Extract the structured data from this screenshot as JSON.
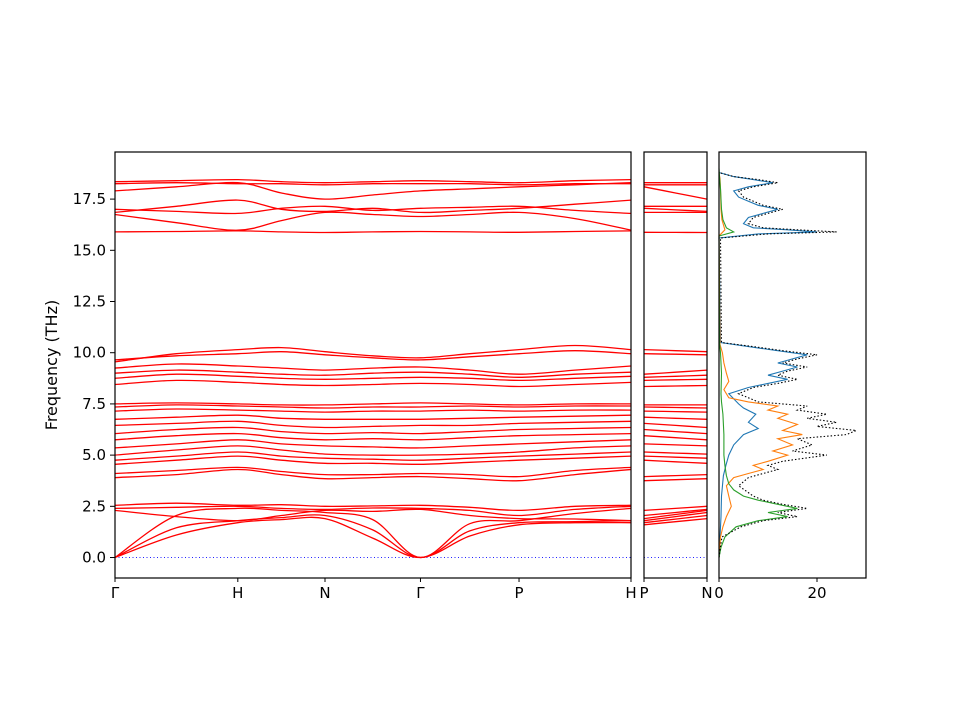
{
  "figure": {
    "ylabel": "Frequency (THz)",
    "background": "#ffffff",
    "frame_color": "#000000",
    "zero_line_color": "#0000ff",
    "band_color": "#ff0000"
  },
  "chart_data": [
    {
      "type": "line",
      "name": "band-structure-main",
      "title": "",
      "xlabel": "",
      "ylabel": "Frequency (THz)",
      "xticklabels": [
        "Γ",
        "H",
        "N",
        "Γ",
        "P",
        "H"
      ],
      "xtick_positions": [
        0,
        0.238,
        0.407,
        0.592,
        0.783,
        1.0
      ],
      "yticks": [
        0,
        2.5,
        5,
        7.5,
        10,
        12.5,
        15,
        17.5
      ],
      "ytick_labels": [
        "0.0",
        "2.5",
        "5.0",
        "7.5",
        "10.0",
        "12.5",
        "15.0",
        "17.5"
      ],
      "ylim": [
        -1.0,
        19.8
      ],
      "zero_line": 0,
      "band_color": "#ff0000",
      "sample_positions": [
        0,
        0.119,
        0.238,
        0.3225,
        0.407,
        0.4995,
        0.592,
        0.6875,
        0.783,
        0.8915,
        1.0
      ],
      "bands": [
        [
          0,
          1.1,
          1.7,
          1.85,
          1.9,
          0.95,
          0,
          1.05,
          1.6,
          1.7,
          1.7
        ],
        [
          0,
          1.45,
          1.8,
          1.95,
          2.05,
          1.35,
          0,
          1.3,
          1.7,
          1.75,
          1.8
        ],
        [
          0,
          2.05,
          2.4,
          2.3,
          2.2,
          1.85,
          0,
          1.65,
          1.8,
          2.15,
          2.4
        ],
        [
          2.3,
          2.0,
          1.8,
          2.05,
          2.3,
          2.25,
          2.35,
          2.05,
          1.9,
          1.88,
          1.8
        ],
        [
          2.4,
          2.45,
          2.5,
          2.4,
          2.35,
          2.42,
          2.4,
          2.3,
          2.05,
          2.35,
          2.5
        ],
        [
          2.55,
          2.65,
          2.55,
          2.58,
          2.5,
          2.52,
          2.55,
          2.45,
          2.3,
          2.5,
          2.55
        ],
        [
          3.9,
          4.05,
          4.3,
          4.05,
          3.85,
          3.9,
          3.95,
          3.85,
          3.75,
          4.05,
          4.3
        ],
        [
          4.1,
          4.25,
          4.4,
          4.2,
          4.05,
          4.05,
          4.1,
          4.05,
          3.95,
          4.25,
          4.4
        ],
        [
          4.55,
          4.75,
          4.95,
          4.75,
          4.6,
          4.6,
          4.55,
          4.65,
          4.75,
          4.85,
          4.95
        ],
        [
          4.75,
          4.95,
          5.15,
          4.95,
          4.85,
          4.8,
          4.75,
          4.85,
          4.95,
          5.05,
          5.15
        ],
        [
          5.0,
          5.25,
          5.45,
          5.25,
          5.05,
          5.0,
          5.0,
          5.05,
          5.15,
          5.35,
          5.45
        ],
        [
          5.35,
          5.55,
          5.75,
          5.55,
          5.45,
          5.4,
          5.35,
          5.45,
          5.55,
          5.65,
          5.75
        ],
        [
          5.75,
          5.95,
          6.05,
          5.85,
          5.75,
          5.8,
          5.75,
          5.85,
          5.95,
          6.0,
          6.05
        ],
        [
          6.05,
          6.25,
          6.35,
          6.15,
          6.05,
          6.1,
          6.05,
          6.15,
          6.25,
          6.3,
          6.35
        ],
        [
          6.45,
          6.55,
          6.65,
          6.45,
          6.35,
          6.4,
          6.45,
          6.45,
          6.55,
          6.6,
          6.65
        ],
        [
          6.75,
          6.85,
          6.95,
          6.8,
          6.75,
          6.75,
          6.75,
          6.8,
          6.85,
          6.9,
          6.95
        ],
        [
          7.15,
          7.25,
          7.2,
          7.15,
          7.1,
          7.15,
          7.15,
          7.2,
          7.15,
          7.2,
          7.2
        ],
        [
          7.35,
          7.45,
          7.4,
          7.35,
          7.3,
          7.35,
          7.35,
          7.4,
          7.35,
          7.4,
          7.4
        ],
        [
          7.5,
          7.55,
          7.5,
          7.45,
          7.45,
          7.5,
          7.55,
          7.5,
          7.45,
          7.5,
          7.5
        ],
        [
          8.45,
          8.65,
          8.55,
          8.45,
          8.4,
          8.45,
          8.5,
          8.45,
          8.35,
          8.45,
          8.55
        ],
        [
          8.75,
          8.95,
          8.85,
          8.75,
          8.7,
          8.75,
          8.8,
          8.75,
          8.65,
          8.75,
          8.85
        ],
        [
          9.0,
          9.15,
          9.05,
          8.95,
          8.9,
          9.0,
          9.05,
          8.95,
          8.8,
          8.95,
          9.05
        ],
        [
          9.25,
          9.45,
          9.35,
          9.25,
          9.15,
          9.25,
          9.3,
          9.15,
          8.95,
          9.15,
          9.35
        ],
        [
          9.55,
          9.95,
          10.15,
          10.25,
          10.05,
          9.85,
          9.75,
          9.95,
          10.15,
          10.35,
          10.15
        ],
        [
          9.65,
          9.85,
          9.95,
          10.05,
          9.9,
          9.75,
          9.65,
          9.8,
          9.95,
          10.1,
          9.95
        ],
        [
          15.9,
          15.92,
          15.95,
          15.9,
          15.87,
          15.9,
          15.92,
          15.9,
          15.88,
          15.92,
          15.95
        ],
        [
          16.75,
          16.35,
          15.98,
          16.45,
          16.85,
          16.75,
          16.65,
          16.75,
          16.85,
          16.55,
          15.98
        ],
        [
          16.85,
          17.15,
          17.45,
          17.0,
          16.9,
          17.05,
          16.85,
          16.95,
          17.05,
          17.25,
          17.45
        ],
        [
          17.0,
          16.9,
          16.8,
          17.05,
          17.15,
          16.95,
          17.05,
          17.1,
          17.15,
          16.95,
          16.8
        ],
        [
          17.9,
          18.1,
          18.3,
          17.8,
          17.5,
          17.7,
          17.9,
          18.0,
          18.1,
          18.2,
          18.3
        ],
        [
          18.25,
          18.3,
          18.25,
          18.25,
          18.2,
          18.25,
          18.25,
          18.25,
          18.2,
          18.25,
          18.25
        ],
        [
          18.35,
          18.4,
          18.45,
          18.35,
          18.3,
          18.35,
          18.4,
          18.35,
          18.3,
          18.4,
          18.45
        ]
      ]
    },
    {
      "type": "line",
      "name": "band-structure-pn",
      "title": "",
      "xticklabels": [
        "P",
        "N"
      ],
      "path_sample_indices": {
        "P": 8,
        "N": 4
      },
      "shares_bands_with": "band-structure-main",
      "ylim": [
        -1.0,
        19.8
      ],
      "zero_line": 0,
      "band_color": "#ff0000"
    },
    {
      "type": "line",
      "name": "density-of-states",
      "title": "",
      "xticks": [
        0,
        20
      ],
      "xtick_labels": [
        "0",
        "20"
      ],
      "xlim": [
        0,
        30
      ],
      "ylim": [
        -1.0,
        19.8
      ],
      "series": [
        {
          "name": "partial-dos-blue",
          "color": "#1f77b4",
          "line_style": "solid",
          "points": [
            [
              0,
              0
            ],
            [
              1,
              0.2
            ],
            [
              2,
              0.4
            ],
            [
              3,
              0.5
            ],
            [
              4,
              0.9
            ],
            [
              4.5,
              1.4
            ],
            [
              5,
              2
            ],
            [
              5.5,
              3
            ],
            [
              6,
              5
            ],
            [
              6.3,
              8
            ],
            [
              6.6,
              6
            ],
            [
              7,
              7.5
            ],
            [
              7.3,
              5
            ],
            [
              7.5,
              4
            ],
            [
              8,
              2
            ],
            [
              8.3,
              6
            ],
            [
              8.5,
              10
            ],
            [
              8.7,
              14
            ],
            [
              8.9,
              10
            ],
            [
              9.1,
              13
            ],
            [
              9.3,
              16
            ],
            [
              9.5,
              12
            ],
            [
              9.7,
              15
            ],
            [
              9.9,
              18
            ],
            [
              10.1,
              12
            ],
            [
              10.3,
              6
            ],
            [
              10.5,
              0.3
            ],
            [
              15.6,
              0
            ],
            [
              15.8,
              8
            ],
            [
              15.9,
              20
            ],
            [
              16.0,
              14
            ],
            [
              16.1,
              7
            ],
            [
              16.3,
              5
            ],
            [
              16.6,
              6
            ],
            [
              16.8,
              9
            ],
            [
              17.0,
              12
            ],
            [
              17.2,
              8
            ],
            [
              17.4,
              6
            ],
            [
              17.6,
              4
            ],
            [
              17.9,
              3
            ],
            [
              18.1,
              6
            ],
            [
              18.3,
              11
            ],
            [
              18.45,
              7
            ],
            [
              18.6,
              3
            ],
            [
              18.8,
              0
            ]
          ]
        },
        {
          "name": "partial-dos-orange",
          "color": "#ff7f0e",
          "line_style": "solid",
          "points": [
            [
              0,
              0
            ],
            [
              1,
              0.3
            ],
            [
              1.5,
              0.8
            ],
            [
              2,
              1.5
            ],
            [
              2.5,
              2.5
            ],
            [
              3,
              2
            ],
            [
              3.5,
              1.5
            ],
            [
              3.9,
              3
            ],
            [
              4.1,
              6
            ],
            [
              4.3,
              9
            ],
            [
              4.5,
              7
            ],
            [
              4.7,
              10
            ],
            [
              5,
              14
            ],
            [
              5.2,
              11
            ],
            [
              5.5,
              15
            ],
            [
              5.8,
              12
            ],
            [
              6,
              17
            ],
            [
              6.2,
              13
            ],
            [
              6.5,
              16
            ],
            [
              6.8,
              12
            ],
            [
              7,
              14
            ],
            [
              7.2,
              10
            ],
            [
              7.4,
              12
            ],
            [
              7.6,
              6
            ],
            [
              7.8,
              2
            ],
            [
              8.2,
              1
            ],
            [
              8.6,
              2
            ],
            [
              9,
              1.5
            ],
            [
              9.5,
              1
            ],
            [
              10,
              0.7
            ],
            [
              10.4,
              0.2
            ],
            [
              15.7,
              0
            ],
            [
              16,
              1.2
            ],
            [
              16.5,
              0.6
            ],
            [
              17,
              0.4
            ],
            [
              18,
              0.3
            ],
            [
              18.5,
              0.2
            ],
            [
              18.8,
              0
            ]
          ]
        },
        {
          "name": "partial-dos-green",
          "color": "#2ca02c",
          "line_style": "solid",
          "points": [
            [
              0,
              0
            ],
            [
              0.5,
              0.4
            ],
            [
              1,
              1.2
            ],
            [
              1.5,
              3.5
            ],
            [
              1.8,
              8
            ],
            [
              2,
              14
            ],
            [
              2.2,
              10
            ],
            [
              2.4,
              16
            ],
            [
              2.6,
              12
            ],
            [
              2.8,
              8
            ],
            [
              3,
              5
            ],
            [
              3.3,
              3
            ],
            [
              3.6,
              2
            ],
            [
              4,
              1.5
            ],
            [
              4.5,
              1.2
            ],
            [
              5,
              1
            ],
            [
              6,
              1
            ],
            [
              7,
              0.8
            ],
            [
              7.6,
              0.5
            ],
            [
              8,
              0.4
            ],
            [
              9,
              0.5
            ],
            [
              10,
              0.3
            ],
            [
              10.5,
              0.1
            ],
            [
              15.7,
              0
            ],
            [
              15.9,
              3
            ],
            [
              16.1,
              1.5
            ],
            [
              16.5,
              0.8
            ],
            [
              17,
              0.5
            ],
            [
              18,
              0.3
            ],
            [
              18.6,
              0.1
            ],
            [
              19,
              0
            ]
          ]
        },
        {
          "name": "total-dos",
          "color": "#000000",
          "line_style": "dotted",
          "points": [
            [
              0,
              0
            ],
            [
              1,
              0.6
            ],
            [
              1.5,
              4.5
            ],
            [
              1.8,
              9
            ],
            [
              2,
              16
            ],
            [
              2.2,
              12
            ],
            [
              2.4,
              18
            ],
            [
              2.6,
              13
            ],
            [
              2.8,
              9
            ],
            [
              3,
              7
            ],
            [
              3.5,
              4
            ],
            [
              3.9,
              6
            ],
            [
              4.1,
              9
            ],
            [
              4.3,
              12
            ],
            [
              4.5,
              10
            ],
            [
              4.7,
              13
            ],
            [
              5,
              22
            ],
            [
              5.2,
              15
            ],
            [
              5.5,
              19
            ],
            [
              5.8,
              16
            ],
            [
              6,
              26
            ],
            [
              6.2,
              28
            ],
            [
              6.4,
              20
            ],
            [
              6.6,
              24
            ],
            [
              6.8,
              18
            ],
            [
              7,
              22
            ],
            [
              7.2,
              16
            ],
            [
              7.4,
              18
            ],
            [
              7.6,
              8
            ],
            [
              8,
              4
            ],
            [
              8.3,
              7
            ],
            [
              8.5,
              12
            ],
            [
              8.7,
              16
            ],
            [
              8.9,
              12
            ],
            [
              9.1,
              14
            ],
            [
              9.3,
              18
            ],
            [
              9.5,
              13
            ],
            [
              9.7,
              16
            ],
            [
              9.9,
              20
            ],
            [
              10.1,
              13
            ],
            [
              10.3,
              7
            ],
            [
              10.5,
              0.5
            ],
            [
              15.6,
              0.3
            ],
            [
              15.8,
              10
            ],
            [
              15.9,
              24
            ],
            [
              16,
              16
            ],
            [
              16.1,
              9
            ],
            [
              16.3,
              6
            ],
            [
              16.6,
              7
            ],
            [
              16.8,
              10
            ],
            [
              17,
              13
            ],
            [
              17.2,
              9
            ],
            [
              17.4,
              7
            ],
            [
              17.6,
              5
            ],
            [
              17.9,
              4
            ],
            [
              18.1,
              7
            ],
            [
              18.3,
              12
            ],
            [
              18.45,
              8
            ],
            [
              18.6,
              3
            ],
            [
              18.8,
              0
            ]
          ]
        }
      ]
    }
  ]
}
